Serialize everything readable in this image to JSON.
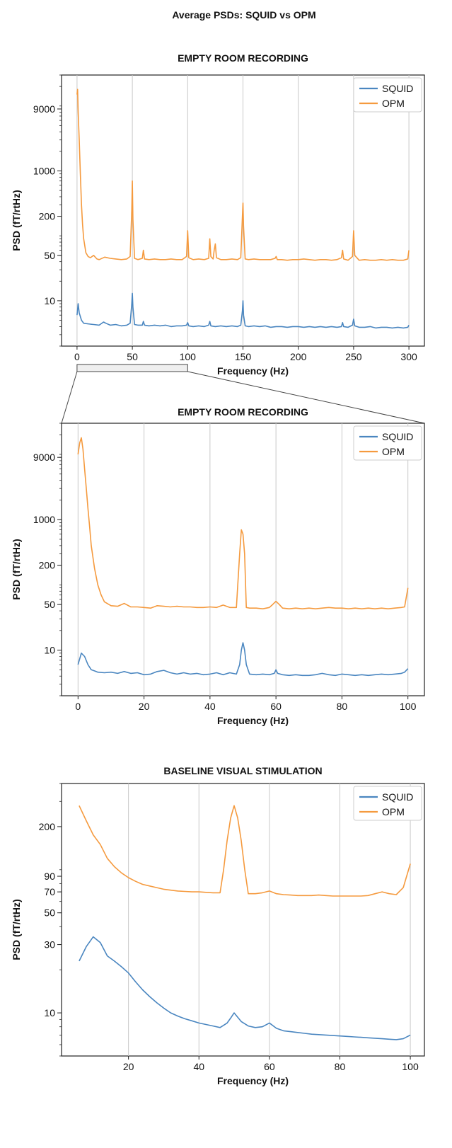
{
  "figure_title": "Average PSDs: SQUID vs OPM",
  "colors": {
    "squid": "#4a86c0",
    "opm": "#f59a3e",
    "grid": "#c8c8c8",
    "zoom_box": "#efefef"
  },
  "chart_data": [
    {
      "type": "line",
      "title": "EMPTY ROOM RECORDING",
      "xlabel": "Frequency (Hz)",
      "ylabel": "PSD (fT/rtHz)",
      "xlim": [
        -14,
        314
      ],
      "ylim": [
        2,
        30000
      ],
      "yscale": "log",
      "xticks": [
        0,
        50,
        100,
        150,
        200,
        250,
        300
      ],
      "xticklabels": [
        "0",
        "50",
        "100",
        "150",
        "200",
        "250",
        "300"
      ],
      "yticks": [
        10,
        50,
        200,
        1000,
        9000
      ],
      "yticklabels": [
        "10",
        "50",
        "200",
        "1000",
        "9000"
      ],
      "grid": "x",
      "legend": "top-right",
      "zoom_range": [
        0,
        100
      ],
      "series": [
        {
          "name": "SQUID",
          "x": [
            0,
            1,
            2,
            4,
            6,
            10,
            15,
            20,
            24,
            26,
            30,
            35,
            40,
            45,
            48,
            49.5,
            50,
            50.5,
            52,
            55,
            59,
            60,
            61,
            65,
            70,
            75,
            80,
            85,
            90,
            95,
            99,
            100,
            101,
            105,
            110,
            115,
            119,
            120,
            121,
            125,
            130,
            135,
            140,
            145,
            148,
            149.5,
            150,
            150.5,
            152,
            155,
            160,
            165,
            170,
            175,
            180,
            185,
            190,
            195,
            200,
            205,
            210,
            215,
            220,
            225,
            230,
            235,
            239,
            240,
            241,
            245,
            249,
            250,
            251,
            255,
            260,
            265,
            270,
            275,
            280,
            285,
            290,
            295,
            299,
            300
          ],
          "values": [
            6,
            9,
            6.5,
            5,
            4.5,
            4.4,
            4.3,
            4.2,
            4.7,
            4.5,
            4.2,
            4.3,
            4.1,
            4.2,
            4.5,
            9,
            13,
            8,
            4.3,
            4.2,
            4.2,
            4.8,
            4.2,
            4.1,
            4.2,
            4.1,
            4.2,
            4.0,
            4.1,
            4.1,
            4.2,
            4.6,
            4.1,
            4.0,
            4.1,
            4.0,
            4.2,
            4.8,
            4.1,
            4.0,
            4.1,
            4.0,
            4.1,
            4.0,
            4.2,
            7,
            10,
            6,
            4.1,
            4.0,
            4.1,
            4.0,
            4.1,
            3.9,
            4.0,
            4.0,
            3.9,
            4.0,
            4.0,
            3.9,
            4.0,
            3.9,
            4.0,
            3.9,
            4.0,
            3.9,
            4.0,
            4.6,
            4.0,
            3.9,
            4.2,
            5.2,
            4.1,
            3.9,
            3.9,
            4.0,
            3.8,
            3.9,
            3.9,
            3.8,
            3.9,
            3.8,
            3.9,
            4.2
          ]
        },
        {
          "name": "OPM",
          "x": [
            0,
            0.5,
            1,
            2,
            3,
            4,
            5,
            6,
            8,
            10,
            12,
            15,
            18,
            20,
            25,
            30,
            35,
            40,
            45,
            48,
            49.5,
            50,
            50.5,
            52,
            55,
            59,
            60,
            61,
            65,
            70,
            75,
            80,
            85,
            90,
            95,
            99,
            100,
            101,
            105,
            110,
            115,
            119,
            120,
            121,
            123,
            124,
            125,
            126,
            130,
            135,
            140,
            145,
            148,
            149.5,
            150,
            150.5,
            152,
            155,
            160,
            165,
            170,
            175,
            179,
            180,
            181,
            185,
            190,
            195,
            200,
            205,
            210,
            215,
            220,
            225,
            230,
            235,
            239,
            240,
            241,
            245,
            249,
            250,
            251,
            255,
            260,
            265,
            270,
            275,
            280,
            285,
            290,
            295,
            299,
            300
          ],
          "values": [
            15000,
            18000,
            8000,
            3000,
            900,
            300,
            150,
            90,
            55,
            48,
            46,
            50,
            44,
            43,
            47,
            45,
            44,
            43,
            44,
            48,
            250,
            700,
            180,
            45,
            43,
            45,
            60,
            44,
            43,
            44,
            43,
            43,
            44,
            43,
            43,
            48,
            120,
            46,
            43,
            44,
            43,
            45,
            90,
            48,
            44,
            60,
            75,
            46,
            43,
            43,
            44,
            43,
            46,
            200,
            320,
            140,
            44,
            43,
            44,
            43,
            43,
            43,
            45,
            48,
            43,
            43,
            42,
            43,
            43,
            44,
            43,
            42,
            43,
            43,
            42,
            43,
            46,
            60,
            44,
            42,
            48,
            120,
            50,
            42,
            43,
            42,
            42,
            43,
            42,
            43,
            42,
            42,
            44,
            60
          ]
        }
      ]
    },
    {
      "type": "line",
      "title": "EMPTY ROOM RECORDING",
      "xlabel": "Frequency (Hz)",
      "ylabel": "PSD (fT/rtHz)",
      "xlim": [
        -5,
        105
      ],
      "ylim": [
        2,
        30000
      ],
      "yscale": "log",
      "xticks": [
        0,
        20,
        40,
        60,
        80,
        100
      ],
      "xticklabels": [
        "0",
        "20",
        "40",
        "60",
        "80",
        "100"
      ],
      "yticks": [
        10,
        50,
        200,
        1000,
        9000
      ],
      "yticklabels": [
        "10",
        "50",
        "200",
        "1000",
        "9000"
      ],
      "grid": "x",
      "legend": "top-right",
      "series": [
        {
          "name": "SQUID",
          "x": [
            0,
            1,
            2,
            3,
            4,
            5,
            6,
            8,
            10,
            12,
            14,
            16,
            18,
            20,
            22,
            24,
            26,
            28,
            30,
            32,
            34,
            36,
            38,
            40,
            42,
            44,
            46,
            48,
            49,
            49.5,
            50,
            50.5,
            51,
            52,
            54,
            56,
            58,
            59.5,
            60,
            60.5,
            62,
            64,
            66,
            68,
            70,
            72,
            74,
            76,
            78,
            80,
            82,
            84,
            86,
            88,
            90,
            92,
            94,
            96,
            98,
            99,
            100
          ],
          "values": [
            6,
            9,
            8,
            6,
            5,
            4.8,
            4.6,
            4.5,
            4.6,
            4.4,
            4.7,
            4.4,
            4.5,
            4.2,
            4.3,
            4.7,
            4.9,
            4.5,
            4.3,
            4.5,
            4.3,
            4.4,
            4.2,
            4.3,
            4.5,
            4.2,
            4.5,
            4.3,
            6,
            10,
            13,
            10,
            6,
            4.3,
            4.2,
            4.3,
            4.2,
            4.4,
            5,
            4.4,
            4.2,
            4.1,
            4.2,
            4.1,
            4.1,
            4.2,
            4.4,
            4.2,
            4.1,
            4.3,
            4.2,
            4.1,
            4.2,
            4.1,
            4.2,
            4.3,
            4.2,
            4.3,
            4.4,
            4.6,
            5.2
          ]
        },
        {
          "name": "OPM",
          "x": [
            0,
            0.5,
            1,
            1.5,
            2,
            2.5,
            3,
            3.5,
            4,
            5,
            6,
            7,
            8,
            10,
            12,
            14,
            16,
            18,
            20,
            22,
            24,
            26,
            28,
            30,
            32,
            34,
            36,
            38,
            40,
            42,
            44,
            46,
            48,
            49,
            49.5,
            50,
            50.5,
            51,
            52,
            54,
            56,
            58,
            59,
            60,
            61,
            62,
            64,
            66,
            68,
            70,
            72,
            74,
            76,
            78,
            80,
            82,
            84,
            86,
            88,
            90,
            92,
            94,
            96,
            98,
            99,
            100
          ],
          "values": [
            10000,
            15000,
            18000,
            12000,
            6000,
            3000,
            1500,
            800,
            400,
            180,
            100,
            70,
            55,
            48,
            47,
            52,
            46,
            46,
            45,
            44,
            48,
            47,
            46,
            47,
            46,
            46,
            45,
            45,
            46,
            45,
            49,
            45,
            45,
            300,
            700,
            600,
            300,
            45,
            44,
            44,
            43,
            45,
            50,
            56,
            50,
            44,
            43,
            44,
            43,
            44,
            43,
            44,
            45,
            44,
            44,
            43,
            44,
            43,
            44,
            43,
            44,
            43,
            44,
            45,
            46,
            90
          ]
        }
      ]
    },
    {
      "type": "line",
      "title": "BASELINE VISUAL STIMULATION",
      "xlabel": "Frequency (Hz)",
      "ylabel": "PSD (fT/rtHz)",
      "xlim": [
        1,
        104
      ],
      "ylim": [
        5,
        400
      ],
      "yscale": "log",
      "xticks": [
        20,
        40,
        60,
        80,
        100
      ],
      "xticklabels": [
        "20",
        "40",
        "60",
        "80",
        "100"
      ],
      "yticks": [
        10,
        30,
        50,
        70,
        90,
        200
      ],
      "yticklabels": [
        "10",
        "30",
        "50",
        "70",
        "90",
        "200"
      ],
      "grid": "x",
      "legend": "top-right",
      "series": [
        {
          "name": "SQUID",
          "x": [
            6,
            8,
            10,
            12,
            14,
            16,
            18,
            20,
            22,
            24,
            26,
            28,
            30,
            32,
            34,
            36,
            38,
            40,
            42,
            44,
            46,
            48,
            49,
            50,
            52,
            54,
            56,
            58,
            60,
            62,
            64,
            66,
            68,
            70,
            72,
            74,
            76,
            78,
            80,
            82,
            84,
            86,
            88,
            90,
            92,
            94,
            96,
            98,
            100
          ],
          "values": [
            23,
            29,
            34,
            31,
            25,
            23,
            21,
            19,
            16.5,
            14.5,
            13,
            11.8,
            10.8,
            10,
            9.5,
            9.1,
            8.8,
            8.5,
            8.3,
            8.1,
            7.9,
            8.5,
            9.2,
            10,
            8.7,
            8.1,
            7.9,
            8,
            8.5,
            7.8,
            7.5,
            7.4,
            7.3,
            7.2,
            7.1,
            7.05,
            7.0,
            6.95,
            6.9,
            6.85,
            6.8,
            6.75,
            6.7,
            6.65,
            6.6,
            6.55,
            6.5,
            6.6,
            7.0
          ]
        },
        {
          "name": "OPM",
          "x": [
            6,
            8,
            10,
            12,
            14,
            16,
            18,
            20,
            22,
            24,
            26,
            28,
            30,
            32,
            34,
            36,
            38,
            40,
            42,
            44,
            46,
            47,
            48,
            49,
            50,
            51,
            52,
            53,
            54,
            56,
            58,
            60,
            62,
            64,
            66,
            68,
            70,
            72,
            74,
            76,
            78,
            80,
            82,
            84,
            86,
            88,
            90,
            92,
            94,
            96,
            98,
            100
          ],
          "values": [
            280,
            220,
            175,
            150,
            120,
            105,
            95,
            88,
            83,
            79,
            77,
            75,
            73,
            72,
            71,
            70.5,
            70,
            70,
            69.5,
            69,
            69,
            100,
            160,
            230,
            280,
            230,
            160,
            100,
            68,
            68,
            69,
            71,
            68,
            67,
            66.5,
            66,
            66,
            66,
            66.5,
            66,
            65.5,
            65.5,
            65.5,
            65.5,
            65.5,
            66,
            68,
            70,
            68,
            67,
            75,
            110
          ]
        }
      ]
    }
  ]
}
